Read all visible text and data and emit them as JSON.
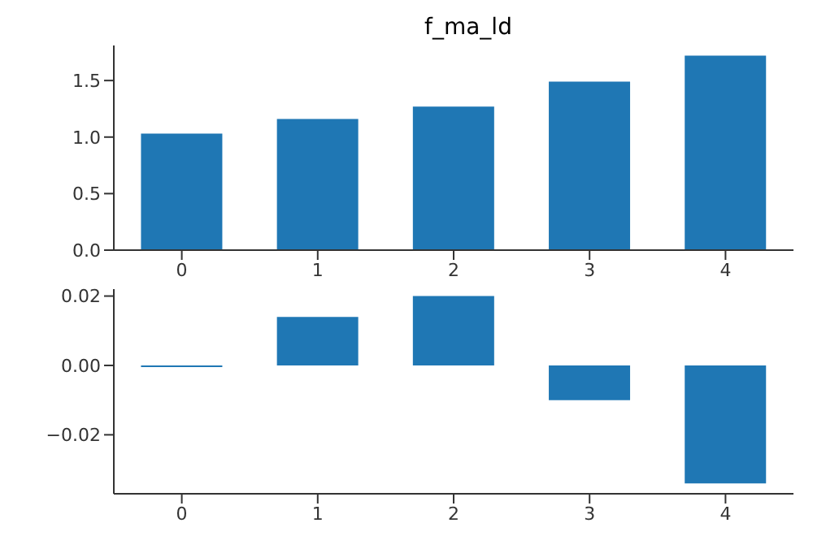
{
  "chart_data": [
    {
      "type": "bar",
      "title": "f_ma_ld",
      "categories": [
        "0",
        "1",
        "2",
        "3",
        "4"
      ],
      "values": [
        1.03,
        1.16,
        1.27,
        1.49,
        1.72
      ],
      "color": "#1f77b4",
      "ylim": [
        0,
        1.81
      ],
      "yticks": [
        {
          "value": 0,
          "label": "0.0"
        },
        {
          "value": 0.5,
          "label": "0.5"
        },
        {
          "value": 1,
          "label": "1.0"
        },
        {
          "value": 1.5,
          "label": "1.5"
        }
      ],
      "grid": false
    },
    {
      "type": "bar",
      "categories": [
        "0",
        "1",
        "2",
        "3",
        "4"
      ],
      "values": [
        -0.0005,
        0.014,
        0.02,
        -0.01,
        -0.034
      ],
      "color": "#1f77b4",
      "ylim": [
        -0.037,
        0.022
      ],
      "yticks": [
        {
          "value": -0.02,
          "label": "−0.02"
        },
        {
          "value": 0,
          "label": "0.00"
        },
        {
          "value": 0.02,
          "label": "0.02"
        }
      ],
      "grid": false
    }
  ]
}
